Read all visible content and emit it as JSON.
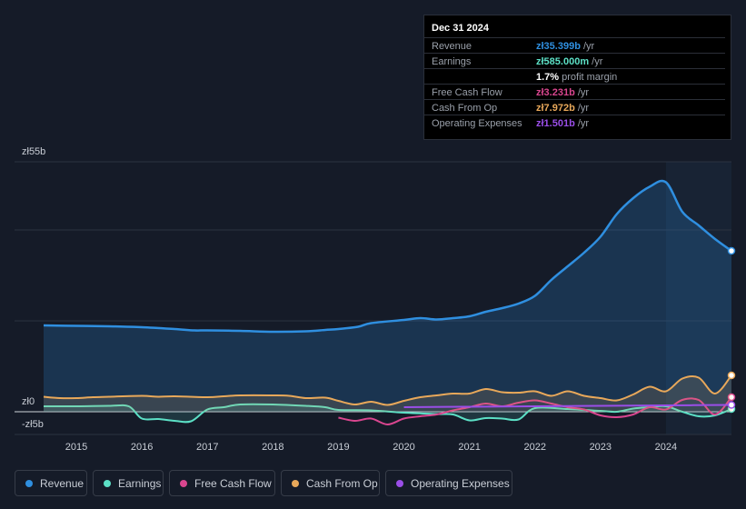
{
  "tooltip": {
    "date": "Dec 31 2024",
    "rows": [
      {
        "label": "Revenue",
        "value": "zł35.399b",
        "unit": " /yr",
        "color": "#2f8fe0"
      },
      {
        "label": "Earnings",
        "value": "zł585.000m",
        "unit": " /yr",
        "color": "#5ce0c6"
      },
      {
        "label": "",
        "value": "1.7%",
        "unit": " profit margin",
        "color": "#ffffff"
      },
      {
        "label": "Free Cash Flow",
        "value": "zł3.231b",
        "unit": " /yr",
        "color": "#d9468f"
      },
      {
        "label": "Cash From Op",
        "value": "zł7.972b",
        "unit": " /yr",
        "color": "#e8a85a"
      },
      {
        "label": "Operating Expenses",
        "value": "zł1.501b",
        "unit": " /yr",
        "color": "#9a4ee8"
      }
    ]
  },
  "legend": [
    {
      "label": "Revenue",
      "color": "#2f8fe0"
    },
    {
      "label": "Earnings",
      "color": "#5ce0c6"
    },
    {
      "label": "Free Cash Flow",
      "color": "#d9468f"
    },
    {
      "label": "Cash From Op",
      "color": "#e8a85a"
    },
    {
      "label": "Operating Expenses",
      "color": "#9a4ee8"
    }
  ],
  "chart_data": {
    "type": "line",
    "title": "",
    "ylabel_top": "zł55b",
    "ylabel_zero": "zł0",
    "ylabel_bottom": "-zł5b",
    "ylim": [
      -5,
      55
    ],
    "xlim": [
      2014.5,
      2025.0
    ],
    "forecast_start": 2024.0,
    "x_ticks": [
      "2015",
      "2016",
      "2017",
      "2018",
      "2019",
      "2020",
      "2021",
      "2022",
      "2023",
      "2024"
    ],
    "series": [
      {
        "name": "Revenue",
        "color": "#2f8fe0",
        "fill": true,
        "points": [
          [
            2014.5,
            19
          ],
          [
            2015.0,
            18.9
          ],
          [
            2015.5,
            18.8
          ],
          [
            2016.0,
            18.6
          ],
          [
            2016.5,
            18.2
          ],
          [
            2016.8,
            17.9
          ],
          [
            2017.0,
            17.9
          ],
          [
            2017.5,
            17.8
          ],
          [
            2018.0,
            17.6
          ],
          [
            2018.5,
            17.7
          ],
          [
            2018.8,
            18.0
          ],
          [
            2019.0,
            18.2
          ],
          [
            2019.3,
            18.7
          ],
          [
            2019.5,
            19.5
          ],
          [
            2020.0,
            20.2
          ],
          [
            2020.25,
            20.6
          ],
          [
            2020.5,
            20.3
          ],
          [
            2020.75,
            20.6
          ],
          [
            2021.0,
            21.0
          ],
          [
            2021.25,
            22.0
          ],
          [
            2021.5,
            22.8
          ],
          [
            2021.75,
            23.8
          ],
          [
            2022.0,
            25.5
          ],
          [
            2022.25,
            29.0
          ],
          [
            2022.5,
            32.0
          ],
          [
            2022.75,
            35.0
          ],
          [
            2023.0,
            38.5
          ],
          [
            2023.25,
            43.5
          ],
          [
            2023.5,
            47.0
          ],
          [
            2023.75,
            49.5
          ],
          [
            2024.0,
            50.5
          ],
          [
            2024.25,
            44.0
          ],
          [
            2024.5,
            41.0
          ],
          [
            2024.75,
            38.0
          ],
          [
            2025.0,
            35.4
          ]
        ]
      },
      {
        "name": "Earnings",
        "color": "#5ce0c6",
        "fill": true,
        "points": [
          [
            2014.5,
            1.2
          ],
          [
            2015.0,
            1.2
          ],
          [
            2015.5,
            1.3
          ],
          [
            2015.8,
            1.2
          ],
          [
            2016.0,
            -1.5
          ],
          [
            2016.25,
            -1.6
          ],
          [
            2016.5,
            -2.0
          ],
          [
            2016.75,
            -2.1
          ],
          [
            2017.0,
            0.5
          ],
          [
            2017.25,
            1.0
          ],
          [
            2017.5,
            1.6
          ],
          [
            2018.0,
            1.6
          ],
          [
            2018.5,
            1.3
          ],
          [
            2018.8,
            1.0
          ],
          [
            2019.0,
            0.4
          ],
          [
            2019.5,
            0.3
          ],
          [
            2020.0,
            -0.2
          ],
          [
            2020.5,
            -0.5
          ],
          [
            2020.75,
            -0.6
          ],
          [
            2021.0,
            -1.9
          ],
          [
            2021.25,
            -1.4
          ],
          [
            2021.5,
            -1.5
          ],
          [
            2021.75,
            -1.7
          ],
          [
            2022.0,
            0.8
          ],
          [
            2022.5,
            0.6
          ],
          [
            2023.0,
            0.2
          ],
          [
            2023.25,
            0.0
          ],
          [
            2023.5,
            0.7
          ],
          [
            2023.75,
            1.0
          ],
          [
            2024.0,
            1.2
          ],
          [
            2024.25,
            0.0
          ],
          [
            2024.5,
            -1.0
          ],
          [
            2024.75,
            -0.8
          ],
          [
            2025.0,
            0.6
          ]
        ]
      },
      {
        "name": "Free Cash Flow",
        "color": "#d9468f",
        "fill": false,
        "points": [
          [
            2019.0,
            -1.3
          ],
          [
            2019.25,
            -2.0
          ],
          [
            2019.5,
            -1.5
          ],
          [
            2019.75,
            -2.8
          ],
          [
            2020.0,
            -1.5
          ],
          [
            2020.25,
            -1.0
          ],
          [
            2020.5,
            -0.6
          ],
          [
            2020.75,
            0.3
          ],
          [
            2021.0,
            1.0
          ],
          [
            2021.25,
            1.8
          ],
          [
            2021.5,
            1.2
          ],
          [
            2021.75,
            2.0
          ],
          [
            2022.0,
            2.5
          ],
          [
            2022.25,
            1.8
          ],
          [
            2022.5,
            1.0
          ],
          [
            2022.75,
            0.5
          ],
          [
            2023.0,
            -0.8
          ],
          [
            2023.25,
            -1.2
          ],
          [
            2023.5,
            -0.6
          ],
          [
            2023.75,
            1.0
          ],
          [
            2024.0,
            0.5
          ],
          [
            2024.25,
            2.6
          ],
          [
            2024.5,
            2.6
          ],
          [
            2024.75,
            -0.6
          ],
          [
            2025.0,
            3.2
          ]
        ]
      },
      {
        "name": "Cash From Op",
        "color": "#e8a85a",
        "fill": true,
        "points": [
          [
            2014.5,
            3.3
          ],
          [
            2014.75,
            3.0
          ],
          [
            2015.0,
            3.0
          ],
          [
            2015.25,
            3.2
          ],
          [
            2015.5,
            3.3
          ],
          [
            2016.0,
            3.5
          ],
          [
            2016.25,
            3.3
          ],
          [
            2016.5,
            3.4
          ],
          [
            2017.0,
            3.2
          ],
          [
            2017.25,
            3.4
          ],
          [
            2017.5,
            3.6
          ],
          [
            2018.0,
            3.6
          ],
          [
            2018.25,
            3.5
          ],
          [
            2018.5,
            3.0
          ],
          [
            2018.8,
            3.1
          ],
          [
            2019.0,
            2.4
          ],
          [
            2019.25,
            1.6
          ],
          [
            2019.5,
            2.2
          ],
          [
            2019.75,
            1.5
          ],
          [
            2020.0,
            2.4
          ],
          [
            2020.25,
            3.2
          ],
          [
            2020.5,
            3.6
          ],
          [
            2020.75,
            4.0
          ],
          [
            2021.0,
            4.0
          ],
          [
            2021.25,
            5.0
          ],
          [
            2021.5,
            4.3
          ],
          [
            2021.75,
            4.2
          ],
          [
            2022.0,
            4.5
          ],
          [
            2022.25,
            3.5
          ],
          [
            2022.5,
            4.5
          ],
          [
            2022.75,
            3.5
          ],
          [
            2023.0,
            3.0
          ],
          [
            2023.25,
            2.5
          ],
          [
            2023.5,
            3.8
          ],
          [
            2023.75,
            5.5
          ],
          [
            2024.0,
            4.5
          ],
          [
            2024.25,
            7.3
          ],
          [
            2024.5,
            7.5
          ],
          [
            2024.75,
            4.0
          ],
          [
            2025.0,
            8.0
          ]
        ]
      },
      {
        "name": "Operating Expenses",
        "color": "#9a4ee8",
        "fill": false,
        "points": [
          [
            2020.0,
            1.0
          ],
          [
            2021.0,
            1.1
          ],
          [
            2022.0,
            1.2
          ],
          [
            2023.0,
            1.3
          ],
          [
            2024.0,
            1.4
          ],
          [
            2025.0,
            1.5
          ]
        ]
      }
    ]
  }
}
